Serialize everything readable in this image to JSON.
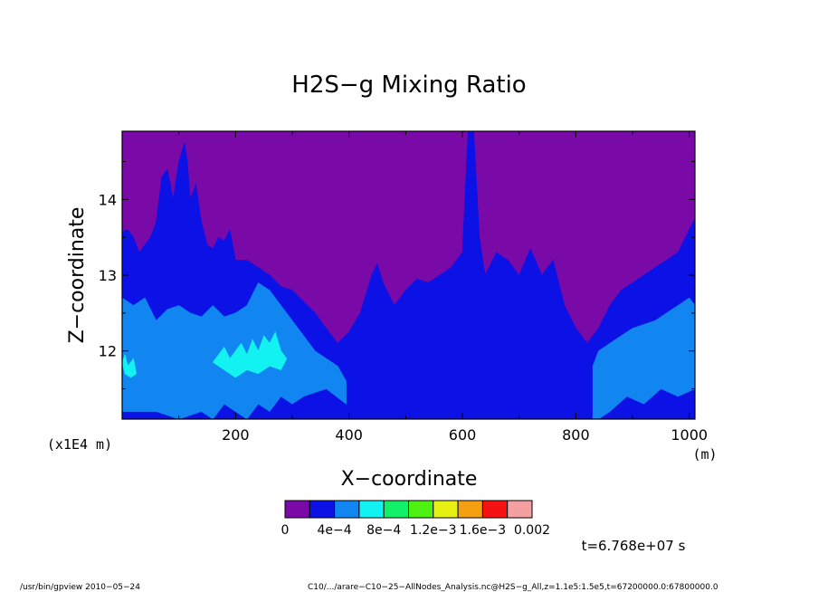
{
  "chart_data": {
    "type": "heatmap",
    "title": "H2S−g Mixing Ratio",
    "xlabel": "X−coordinate",
    "ylabel": "Z−coordinate",
    "x_unit": "(m)",
    "y_unit": "(x1E4 m)",
    "xlim": [
      0,
      1010
    ],
    "ylim": [
      11.1,
      14.9
    ],
    "x_ticks": [
      200,
      400,
      600,
      800,
      1000
    ],
    "y_ticks": [
      12,
      13,
      14
    ],
    "colorbar": {
      "levels": [
        {
          "label": "0",
          "value": 0
        },
        {
          "label": "4e−4",
          "value": 0.0004
        },
        {
          "label": "8e−4",
          "value": 0.0008
        },
        {
          "label": "1.2e−3",
          "value": 0.0012
        },
        {
          "label": "1.6e−3",
          "value": 0.0016
        },
        {
          "label": "0.002",
          "value": 0.002
        }
      ],
      "colors": [
        "#7a0aa8",
        "#0c12e6",
        "#1185f0",
        "#12f2f0",
        "#12f06a",
        "#4ef012",
        "#e6f012",
        "#f5a012",
        "#f51212",
        "#f5a0a0"
      ]
    },
    "layers": [
      {
        "level_index": 1,
        "boundary": [
          [
            0,
            13.58
          ],
          [
            10,
            13.6
          ],
          [
            20,
            13.5
          ],
          [
            30,
            13.3
          ],
          [
            40,
            13.4
          ],
          [
            50,
            13.5
          ],
          [
            60,
            13.7
          ],
          [
            70,
            14.3
          ],
          [
            80,
            14.4
          ],
          [
            90,
            14.0
          ],
          [
            100,
            14.5
          ],
          [
            110,
            14.75
          ],
          [
            115,
            14.5
          ],
          [
            120,
            14.0
          ],
          [
            130,
            14.2
          ],
          [
            140,
            13.7
          ],
          [
            150,
            13.4
          ],
          [
            160,
            13.35
          ],
          [
            170,
            13.5
          ],
          [
            180,
            13.45
          ],
          [
            190,
            13.6
          ],
          [
            200,
            13.2
          ],
          [
            220,
            13.2
          ],
          [
            240,
            13.1
          ],
          [
            260,
            13.0
          ],
          [
            280,
            12.85
          ],
          [
            300,
            12.8
          ],
          [
            320,
            12.65
          ],
          [
            340,
            12.5
          ],
          [
            360,
            12.3
          ],
          [
            380,
            12.1
          ],
          [
            400,
            12.25
          ],
          [
            420,
            12.5
          ],
          [
            440,
            13.0
          ],
          [
            450,
            13.15
          ],
          [
            460,
            12.9
          ],
          [
            480,
            12.6
          ],
          [
            500,
            12.8
          ],
          [
            520,
            12.95
          ],
          [
            540,
            12.9
          ],
          [
            560,
            13.0
          ],
          [
            580,
            13.1
          ],
          [
            600,
            13.3
          ],
          [
            610,
            14.9
          ],
          [
            620,
            14.9
          ],
          [
            630,
            13.5
          ],
          [
            640,
            13.0
          ],
          [
            660,
            13.3
          ],
          [
            680,
            13.2
          ],
          [
            700,
            13.0
          ],
          [
            720,
            13.35
          ],
          [
            740,
            13.0
          ],
          [
            760,
            13.2
          ],
          [
            780,
            12.6
          ],
          [
            800,
            12.3
          ],
          [
            820,
            12.1
          ],
          [
            840,
            12.3
          ],
          [
            860,
            12.6
          ],
          [
            880,
            12.8
          ],
          [
            900,
            12.9
          ],
          [
            920,
            13.0
          ],
          [
            940,
            13.1
          ],
          [
            960,
            13.2
          ],
          [
            980,
            13.3
          ],
          [
            1000,
            13.6
          ],
          [
            1010,
            13.75
          ]
        ]
      },
      {
        "level_index": 2,
        "boundary": [
          [
            0,
            12.7
          ],
          [
            20,
            12.6
          ],
          [
            40,
            12.7
          ],
          [
            60,
            12.4
          ],
          [
            80,
            12.55
          ],
          [
            100,
            12.6
          ],
          [
            120,
            12.5
          ],
          [
            140,
            12.45
          ],
          [
            160,
            12.6
          ],
          [
            180,
            12.45
          ],
          [
            200,
            12.5
          ],
          [
            220,
            12.6
          ],
          [
            240,
            12.9
          ],
          [
            260,
            12.8
          ],
          [
            280,
            12.6
          ],
          [
            300,
            12.4
          ],
          [
            320,
            12.2
          ],
          [
            340,
            12.0
          ],
          [
            360,
            11.9
          ],
          [
            380,
            11.8
          ],
          [
            395,
            11.6
          ]
        ],
        "floor": [
          [
            395,
            11.3
          ],
          [
            360,
            11.5
          ],
          [
            320,
            11.4
          ],
          [
            300,
            11.3
          ],
          [
            280,
            11.4
          ],
          [
            260,
            11.2
          ],
          [
            240,
            11.3
          ],
          [
            220,
            11.1
          ],
          [
            200,
            11.2
          ],
          [
            180,
            11.3
          ],
          [
            160,
            11.1
          ],
          [
            140,
            11.2
          ],
          [
            100,
            11.1
          ],
          [
            60,
            11.2
          ],
          [
            0,
            11.2
          ]
        ]
      },
      {
        "level_index": 2,
        "boundary": [
          [
            830,
            11.1
          ],
          [
            830,
            11.8
          ],
          [
            840,
            12.0
          ],
          [
            860,
            12.1
          ],
          [
            880,
            12.2
          ],
          [
            900,
            12.3
          ],
          [
            920,
            12.35
          ],
          [
            940,
            12.4
          ],
          [
            960,
            12.5
          ],
          [
            980,
            12.6
          ],
          [
            1000,
            12.7
          ],
          [
            1010,
            12.6
          ],
          [
            1010,
            11.5
          ],
          [
            980,
            11.4
          ],
          [
            950,
            11.5
          ],
          [
            920,
            11.3
          ],
          [
            890,
            11.4
          ],
          [
            860,
            11.2
          ],
          [
            840,
            11.1
          ]
        ]
      },
      {
        "level_index": 3,
        "boundary": [
          [
            160,
            11.85
          ],
          [
            180,
            12.05
          ],
          [
            190,
            11.9
          ],
          [
            200,
            12.0
          ],
          [
            210,
            12.1
          ],
          [
            220,
            11.95
          ],
          [
            230,
            12.15
          ],
          [
            240,
            12.0
          ],
          [
            250,
            12.2
          ],
          [
            260,
            12.1
          ],
          [
            270,
            12.25
          ],
          [
            280,
            12.0
          ],
          [
            290,
            11.9
          ],
          [
            280,
            11.75
          ],
          [
            260,
            11.8
          ],
          [
            240,
            11.7
          ],
          [
            220,
            11.75
          ],
          [
            200,
            11.65
          ],
          [
            180,
            11.75
          ]
        ]
      },
      {
        "level_index": 3,
        "boundary": [
          [
            0,
            11.85
          ],
          [
            5,
            11.95
          ],
          [
            10,
            11.8
          ],
          [
            20,
            11.9
          ],
          [
            25,
            11.7
          ],
          [
            15,
            11.65
          ],
          [
            5,
            11.7
          ]
        ]
      }
    ]
  },
  "time_label": "t=6.768e+07 s",
  "footer": {
    "program": "/usr/bin/gpview   2010−05−24",
    "source": "C10/.../arare−C10−25−AllNodes_Analysis.nc@H2S−g_All,z=1.1e5:1.5e5,t=67200000.0:67800000.0"
  }
}
